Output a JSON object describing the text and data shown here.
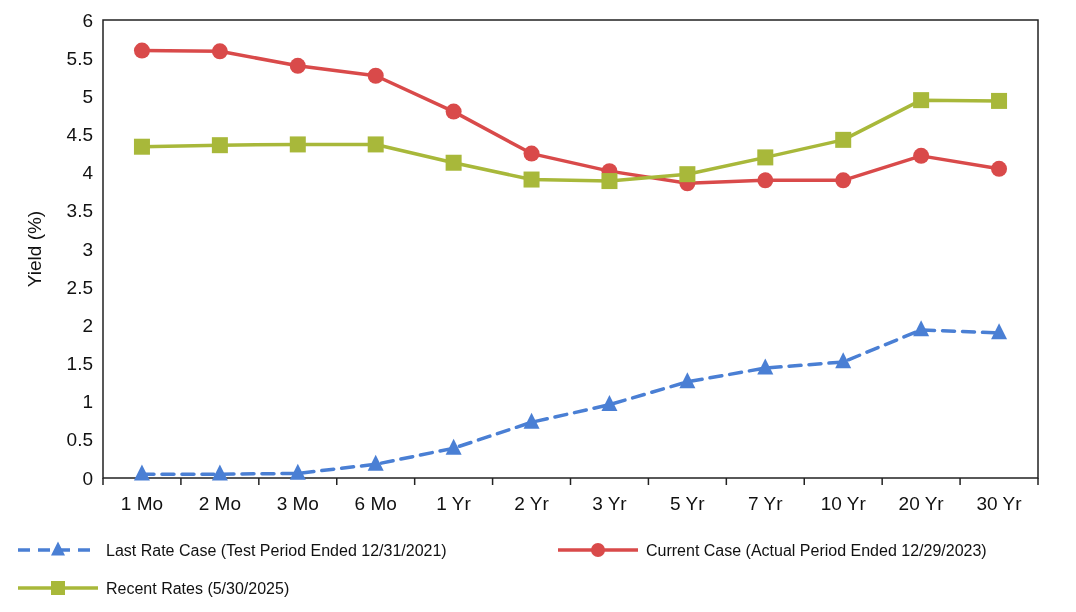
{
  "chart_data": {
    "type": "line",
    "ylabel": "Yield (%)",
    "categories": [
      "1 Mo",
      "2 Mo",
      "3 Mo",
      "6 Mo",
      "1 Yr",
      "2 Yr",
      "3 Yr",
      "5 Yr",
      "7 Yr",
      "10 Yr",
      "20 Yr",
      "30 Yr"
    ],
    "ylim": [
      0,
      6
    ],
    "yticks": [
      0,
      0.5,
      1,
      1.5,
      2,
      2.5,
      3,
      3.5,
      4,
      4.5,
      5,
      5.5,
      6
    ],
    "grid": false,
    "legend": "bottom",
    "series": [
      {
        "name": "Last Rate Case (Test Period Ended 12/31/2021)",
        "color": "#4a7fd4",
        "marker": "triangle",
        "line_style": "dashed",
        "values": [
          0.05,
          0.05,
          0.06,
          0.18,
          0.39,
          0.73,
          0.96,
          1.26,
          1.44,
          1.52,
          1.94,
          1.9
        ]
      },
      {
        "name": "Current Case (Actual Period Ended 12/29/2023)",
        "color": "#d94a4a",
        "marker": "circle",
        "line_style": "solid",
        "values": [
          5.6,
          5.59,
          5.4,
          5.27,
          4.8,
          4.25,
          4.02,
          3.86,
          3.9,
          3.9,
          4.22,
          4.05
        ]
      },
      {
        "name": "Recent Rates (5/30/2025)",
        "color": "#a8b83a",
        "marker": "square",
        "line_style": "solid",
        "values": [
          4.34,
          4.36,
          4.37,
          4.37,
          4.13,
          3.91,
          3.89,
          3.98,
          4.2,
          4.43,
          4.95,
          4.94
        ]
      }
    ]
  }
}
